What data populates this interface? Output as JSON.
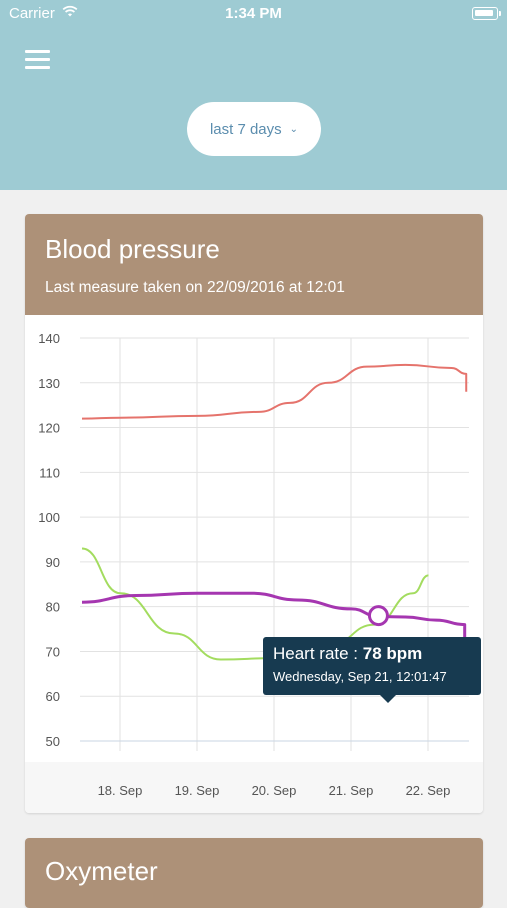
{
  "status_bar": {
    "carrier": "Carrier",
    "time": "1:34 PM"
  },
  "header": {
    "period_label": "last 7 days"
  },
  "cards": [
    {
      "title": "Blood pressure",
      "subtitle": "Last measure taken on 22/09/2016 at 12:01"
    },
    {
      "title": "Oxymeter"
    }
  ],
  "tooltip": {
    "label": "Heart rate : ",
    "value": "78 bpm",
    "date": "Wednesday, Sep 21, 12:01:47"
  },
  "colors": {
    "header_bg": "#9ecbd3",
    "card_header_bg": "#ad9178",
    "systolic": "#e5736c",
    "diastolic": "#a3dc5f",
    "heart_rate": "#a536b0",
    "tooltip_bg": "#173a50"
  },
  "chart_data": {
    "type": "line",
    "x": [
      "17.5 Sep",
      "18. Sep",
      "19. Sep",
      "20. Sep",
      "21. Sep",
      "22. Sep",
      "22.5 Sep"
    ],
    "x_tick_labels": [
      "18. Sep",
      "19. Sep",
      "20. Sep",
      "21. Sep",
      "22. Sep"
    ],
    "y_tick_labels": [
      140,
      130,
      120,
      110,
      100,
      90,
      80,
      70,
      60,
      50
    ],
    "ylim": [
      50,
      140
    ],
    "grid": true,
    "series": [
      {
        "points": [
          [
            0.0,
            122
          ],
          [
            0.5,
            122.2
          ],
          [
            1.5,
            122.6
          ],
          [
            2.3,
            123.5
          ],
          [
            2.7,
            125.5
          ],
          [
            3.2,
            130
          ],
          [
            3.7,
            133.6
          ],
          [
            4.2,
            134
          ],
          [
            4.8,
            133.3
          ],
          [
            4.99,
            132
          ],
          [
            4.99,
            128
          ]
        ]
      },
      {
        "points": [
          [
            0.0,
            93
          ],
          [
            0.5,
            83
          ],
          [
            1.2,
            74
          ],
          [
            1.8,
            68.2
          ],
          [
            2.5,
            68.5
          ],
          [
            3.2,
            71.2
          ],
          [
            3.8,
            76
          ],
          [
            4.3,
            83
          ],
          [
            4.5,
            87
          ]
        ]
      },
      {
        "points": [
          [
            0.0,
            81
          ],
          [
            0.7,
            82.5
          ],
          [
            1.5,
            83
          ],
          [
            2.2,
            83
          ],
          [
            2.8,
            81.5
          ],
          [
            3.5,
            79.5
          ],
          [
            3.85,
            77.8
          ],
          [
            4.2,
            77.7
          ],
          [
            4.6,
            77
          ],
          [
            4.97,
            76
          ],
          [
            4.97,
            63
          ]
        ]
      }
    ],
    "highlight": {
      "x": 3.85,
      "y": 78
    }
  }
}
